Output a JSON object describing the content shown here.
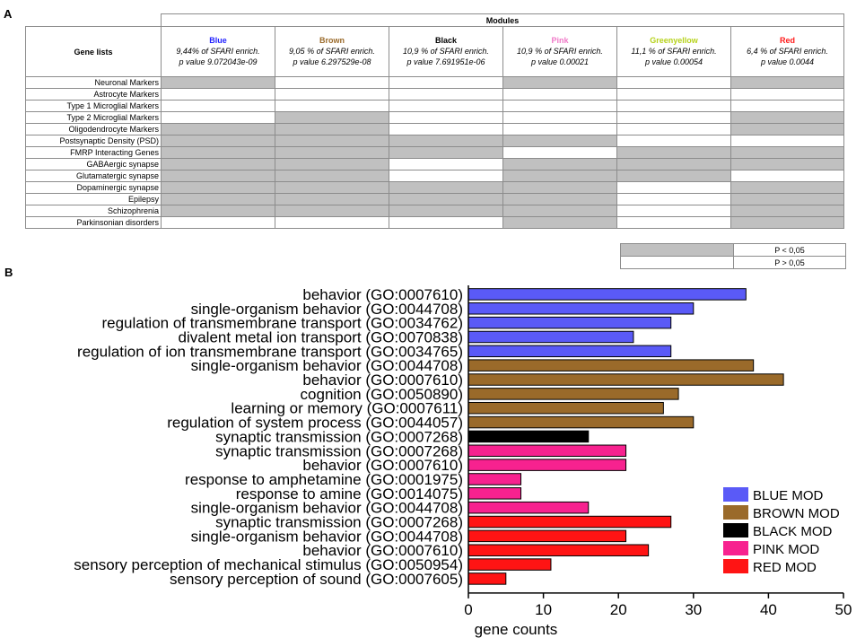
{
  "panel_a": {
    "label": "A",
    "modules_title": "Modules",
    "gene_lists_header": "Gene lists",
    "modules": [
      {
        "name": "Blue",
        "color": "#1f1fff",
        "enrich": "9,44% of SFARI enrich.",
        "pvalue": "p value 9.072043e-09"
      },
      {
        "name": "Brown",
        "color": "#9a6a2a",
        "enrich": "9,05 % of SFARI enrich.",
        "pvalue": "p value 6.297529e-08"
      },
      {
        "name": "Black",
        "color": "#000000",
        "enrich": "10,9 % of SFARI enrich.",
        "pvalue": "p value 7.691951e-06"
      },
      {
        "name": "Pink",
        "color": "#f07ac8",
        "enrich": "10,9 % of SFARI enrich.",
        "pvalue": "p value 0.00021"
      },
      {
        "name": "Greenyellow",
        "color": "#b6d21a",
        "enrich": "11,1 % of SFARI enrich.",
        "pvalue": "p value 0.00054"
      },
      {
        "name": "Red",
        "color": "#ff1a1a",
        "enrich": "6,4 % of SFARI enrich.",
        "pvalue": "p value 0.0044"
      }
    ],
    "rows": [
      {
        "label": "Neuronal Markers",
        "sig": [
          1,
          0,
          0,
          1,
          0,
          1
        ]
      },
      {
        "label": "Astrocyte Markers",
        "sig": [
          0,
          0,
          0,
          0,
          0,
          0
        ]
      },
      {
        "label": "Type 1 Microglial Markers",
        "sig": [
          0,
          0,
          0,
          0,
          0,
          0
        ]
      },
      {
        "label": "Type 2 Microglial Markers",
        "sig": [
          0,
          1,
          0,
          0,
          0,
          1
        ]
      },
      {
        "label": "Oligodendrocyte Markers",
        "sig": [
          1,
          1,
          0,
          0,
          0,
          1
        ]
      },
      {
        "label": "Postsynaptic Density (PSD)",
        "sig": [
          1,
          1,
          1,
          1,
          0,
          0
        ]
      },
      {
        "label": "FMRP Interacting Genes",
        "sig": [
          1,
          1,
          1,
          0,
          1,
          1
        ]
      },
      {
        "label": "GABAergic synapse",
        "sig": [
          1,
          1,
          0,
          1,
          1,
          1
        ]
      },
      {
        "label": "Glutamatergic synapse",
        "sig": [
          1,
          1,
          0,
          1,
          1,
          0
        ]
      },
      {
        "label": "Dopaminergic synapse",
        "sig": [
          1,
          1,
          1,
          1,
          0,
          1
        ]
      },
      {
        "label": "Epilepsy",
        "sig": [
          1,
          1,
          1,
          1,
          0,
          1
        ]
      },
      {
        "label": "Schizophrenia",
        "sig": [
          1,
          1,
          1,
          1,
          0,
          1
        ]
      },
      {
        "label": "Parkinsonian disorders",
        "sig": [
          0,
          0,
          0,
          1,
          0,
          1
        ]
      }
    ],
    "key": [
      {
        "color": "#c0c0c0",
        "text": "P < 0,05"
      },
      {
        "color": "#ffffff",
        "text": "P > 0,05"
      }
    ]
  },
  "panel_b": {
    "label": "B"
  },
  "chart_data": {
    "type": "bar",
    "orientation": "horizontal",
    "xlabel": "gene counts",
    "xlim": [
      0,
      50
    ],
    "xticks": [
      0,
      10,
      20,
      30,
      40,
      50
    ],
    "categories": [
      "behavior (GO:0007610)",
      "single-organism behavior (GO:0044708)",
      "regulation of transmembrane transport (GO:0034762)",
      "divalent metal ion transport (GO:0070838)",
      "regulation of ion transmembrane transport (GO:0034765)",
      "single-organism behavior (GO:0044708)",
      "behavior (GO:0007610)",
      "cognition (GO:0050890)",
      "learning or memory (GO:0007611)",
      "regulation of system process (GO:0044057)",
      "synaptic transmission (GO:0007268)",
      "synaptic transmission (GO:0007268)",
      "behavior (GO:0007610)",
      "response to amphetamine (GO:0001975)",
      "response to amine (GO:0014075)",
      "single-organism behavior (GO:0044708)",
      "synaptic transmission (GO:0007268)",
      "single-organism behavior (GO:0044708)",
      "behavior (GO:0007610)",
      "sensory perception of mechanical stimulus (GO:0050954)",
      "sensory perception of sound (GO:0007605)"
    ],
    "values": [
      37,
      30,
      27,
      22,
      27,
      38,
      42,
      28,
      26,
      30,
      16,
      21,
      21,
      7,
      7,
      16,
      27,
      21,
      24,
      11,
      5
    ],
    "series_index": [
      0,
      0,
      0,
      0,
      0,
      1,
      1,
      1,
      1,
      1,
      2,
      3,
      3,
      3,
      3,
      3,
      4,
      4,
      4,
      4,
      4
    ],
    "legend": [
      {
        "name": "BLUE MOD",
        "color": "#5a5af7"
      },
      {
        "name": "BROWN MOD",
        "color": "#9a6a2a"
      },
      {
        "name": "BLACK MOD",
        "color": "#000000"
      },
      {
        "name": "PINK MOD",
        "color": "#f7228f"
      },
      {
        "name": "RED MOD",
        "color": "#ff1414"
      }
    ],
    "legend_position": "bottom-right"
  }
}
